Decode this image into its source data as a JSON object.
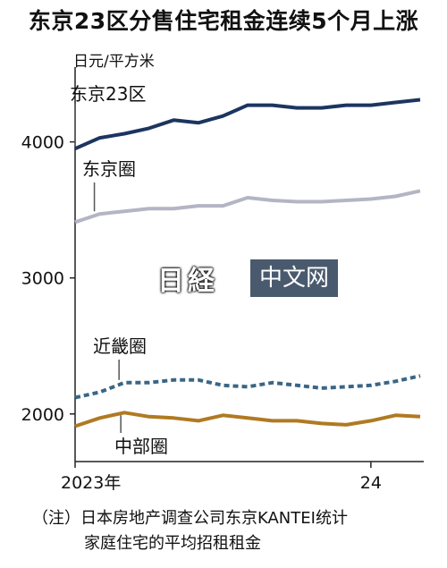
{
  "chart_data": {
    "type": "line",
    "title": "东京23区分售住宅租金连续5个月上涨",
    "ylabel": "日元/平方米",
    "ylim": [
      1650,
      4550
    ],
    "yticks": [
      2000,
      3000,
      4000
    ],
    "xticks": [
      {
        "index": 0,
        "label": "2023年"
      },
      {
        "index": 12,
        "label": "24"
      }
    ],
    "x_count": 15,
    "series": [
      {
        "name": "东京23区",
        "color": "#1c3560",
        "dash": "",
        "values": [
          3950,
          4030,
          4060,
          4100,
          4160,
          4140,
          4190,
          4270,
          4270,
          4250,
          4250,
          4270,
          4270,
          4290,
          4310
        ]
      },
      {
        "name": "东京圈",
        "color": "#b3b5c4",
        "dash": "",
        "values": [
          3410,
          3470,
          3490,
          3510,
          3510,
          3530,
          3530,
          3590,
          3570,
          3560,
          3560,
          3570,
          3580,
          3600,
          3640
        ]
      },
      {
        "name": "近畿圈",
        "color": "#3a6686",
        "dash": "6,4",
        "values": [
          2120,
          2160,
          2230,
          2230,
          2250,
          2250,
          2210,
          2200,
          2230,
          2210,
          2190,
          2200,
          2210,
          2240,
          2280
        ]
      },
      {
        "name": "中部圈",
        "color": "#b07a22",
        "dash": "",
        "values": [
          1910,
          1970,
          2010,
          1980,
          1970,
          1950,
          1990,
          1970,
          1950,
          1950,
          1930,
          1920,
          1950,
          1990,
          1980
        ]
      }
    ]
  },
  "watermark": {
    "logo": "日経",
    "text": "中文网"
  },
  "note": {
    "line1": "（注）日本房地产调查公司东京KANTEI统计",
    "line2": "家庭住宅的平均招租租金"
  }
}
